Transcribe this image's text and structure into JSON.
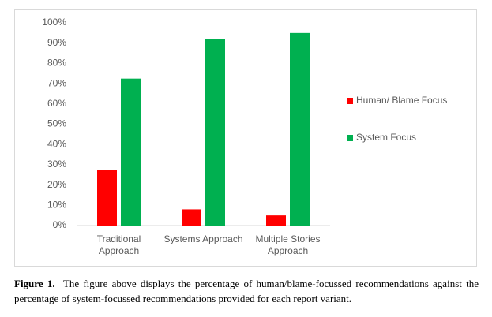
{
  "chart_data": {
    "type": "bar",
    "categories": [
      "Traditional Approach",
      "Systems Approach",
      "Multiple Stories Approach"
    ],
    "series": [
      {
        "name": "Human/ Blame Focus",
        "color": "#ff0000",
        "values": [
          27.5,
          8,
          5
        ]
      },
      {
        "name": "System Focus",
        "color": "#00b050",
        "values": [
          72.5,
          92,
          95
        ]
      }
    ],
    "ylim": [
      0,
      100
    ],
    "yticks": [
      {
        "value": 0,
        "label": "0%"
      },
      {
        "value": 10,
        "label": "10%"
      },
      {
        "value": 20,
        "label": "20%"
      },
      {
        "value": 30,
        "label": "30%"
      },
      {
        "value": 40,
        "label": "40%"
      },
      {
        "value": 50,
        "label": "50%"
      },
      {
        "value": 60,
        "label": "60%"
      },
      {
        "value": 70,
        "label": "70%"
      },
      {
        "value": 80,
        "label": "80%"
      },
      {
        "value": 90,
        "label": "90%"
      },
      {
        "value": 100,
        "label": "100%"
      }
    ],
    "grid": false,
    "legend": "right"
  },
  "caption": {
    "label": "Figure 1.",
    "text": "The figure above displays the percentage of human/blame-focussed recommendations against the percentage of system-focussed recommendations provided for each report variant."
  }
}
